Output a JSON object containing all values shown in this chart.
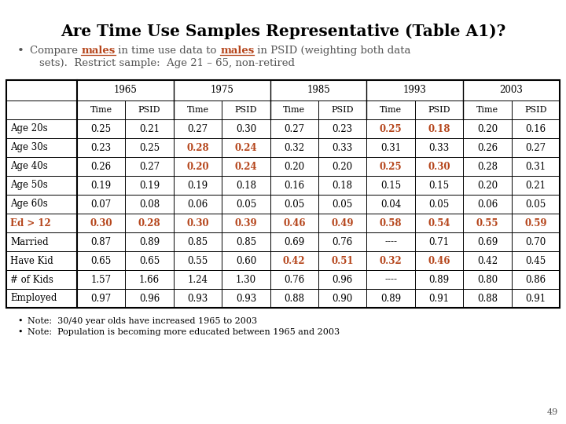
{
  "title": "Are Time Use Samples Representative (Table A1)?",
  "years": [
    "1965",
    "1975",
    "1985",
    "1993",
    "2003"
  ],
  "col_headers": [
    "Time",
    "PSID"
  ],
  "row_labels": [
    "Age 20s",
    "Age 30s",
    "Age 40s",
    "Age 50s",
    "Age 60s",
    "Ed > 12",
    "Married",
    "Have Kid",
    "# of Kids",
    "Employed"
  ],
  "row_label_orange": [
    false,
    false,
    false,
    false,
    false,
    true,
    false,
    false,
    false,
    false
  ],
  "data": [
    [
      "0.25",
      "0.21",
      "0.27",
      "0.30",
      "0.27",
      "0.23",
      "0.25",
      "0.18",
      "0.20",
      "0.16"
    ],
    [
      "0.23",
      "0.25",
      "0.28",
      "0.24",
      "0.32",
      "0.33",
      "0.31",
      "0.33",
      "0.26",
      "0.27"
    ],
    [
      "0.26",
      "0.27",
      "0.20",
      "0.24",
      "0.20",
      "0.20",
      "0.25",
      "0.30",
      "0.28",
      "0.31"
    ],
    [
      "0.19",
      "0.19",
      "0.19",
      "0.18",
      "0.16",
      "0.18",
      "0.15",
      "0.15",
      "0.20",
      "0.21"
    ],
    [
      "0.07",
      "0.08",
      "0.06",
      "0.05",
      "0.05",
      "0.05",
      "0.04",
      "0.05",
      "0.06",
      "0.05"
    ],
    [
      "0.30",
      "0.28",
      "0.30",
      "0.39",
      "0.46",
      "0.49",
      "0.58",
      "0.54",
      "0.55",
      "0.59"
    ],
    [
      "0.87",
      "0.89",
      "0.85",
      "0.85",
      "0.69",
      "0.76",
      "----",
      "0.71",
      "0.69",
      "0.70"
    ],
    [
      "0.65",
      "0.65",
      "0.55",
      "0.60",
      "0.42",
      "0.51",
      "0.32",
      "0.46",
      "0.42",
      "0.45"
    ],
    [
      "1.57",
      "1.66",
      "1.24",
      "1.30",
      "0.76",
      "0.96",
      "----",
      "0.89",
      "0.80",
      "0.86"
    ],
    [
      "0.97",
      "0.96",
      "0.93",
      "0.93",
      "0.88",
      "0.90",
      "0.89",
      "0.91",
      "0.88",
      "0.91"
    ]
  ],
  "orange_cells": [
    [
      false,
      false,
      false,
      false,
      false,
      false,
      true,
      true,
      false,
      false
    ],
    [
      false,
      false,
      true,
      true,
      false,
      false,
      false,
      false,
      false,
      false
    ],
    [
      false,
      false,
      true,
      true,
      false,
      false,
      true,
      true,
      false,
      false
    ],
    [
      false,
      false,
      false,
      false,
      false,
      false,
      false,
      false,
      false,
      false
    ],
    [
      false,
      false,
      false,
      false,
      false,
      false,
      false,
      false,
      false,
      false
    ],
    [
      true,
      true,
      true,
      true,
      true,
      true,
      true,
      true,
      true,
      true
    ],
    [
      false,
      false,
      false,
      false,
      false,
      false,
      false,
      false,
      false,
      false
    ],
    [
      false,
      false,
      false,
      false,
      true,
      true,
      true,
      true,
      false,
      false
    ],
    [
      false,
      false,
      false,
      false,
      false,
      false,
      false,
      false,
      false,
      false
    ],
    [
      false,
      false,
      false,
      false,
      false,
      false,
      false,
      false,
      false,
      false
    ]
  ],
  "notes": [
    "Note:  30/40 year olds have increased 1965 to 2003",
    "Note:  Population is becoming more educated between 1965 and 2003"
  ],
  "page_number": "49",
  "orange_color": "#b5451b",
  "black_color": "#000000",
  "gray_color": "#555555",
  "bg_color": "#ffffff"
}
